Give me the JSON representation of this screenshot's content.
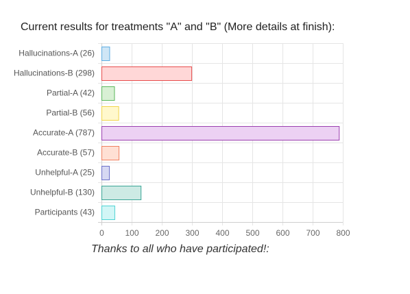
{
  "title": "Current results for treatments \"A\" and \"B\" (More details at finish):",
  "footer": "Thanks to all who have participated!:",
  "chart_data": {
    "type": "bar",
    "orientation": "horizontal",
    "categories": [
      "Hallucinations-A (26)",
      "Hallucinations-B (298)",
      "Partial-A (42)",
      "Partial-B (56)",
      "Accurate-A (787)",
      "Accurate-B (57)",
      "Unhelpful-A (25)",
      "Unhelpful-B (130)",
      "Participants (43)"
    ],
    "values": [
      26,
      298,
      42,
      56,
      787,
      57,
      25,
      130,
      43
    ],
    "xlim": [
      0,
      800
    ],
    "xticks": [
      0,
      100,
      200,
      300,
      400,
      500,
      600,
      700,
      800
    ],
    "grid": true,
    "legend": "none",
    "colors": [
      {
        "fill": "#cfe6f6",
        "stroke": "#5dade2"
      },
      {
        "fill": "#ffd7d7",
        "stroke": "#e74c4c"
      },
      {
        "fill": "#d8f0d4",
        "stroke": "#5cb85c"
      },
      {
        "fill": "#fff8cc",
        "stroke": "#f1d54a"
      },
      {
        "fill": "#ecd1f3",
        "stroke": "#9b3fb0"
      },
      {
        "fill": "#ffe0d4",
        "stroke": "#f08060"
      },
      {
        "fill": "#d6d8f3",
        "stroke": "#6a6fc8"
      },
      {
        "fill": "#cdeae4",
        "stroke": "#3aa596"
      },
      {
        "fill": "#d2f6f6",
        "stroke": "#4dd3d3"
      }
    ]
  }
}
